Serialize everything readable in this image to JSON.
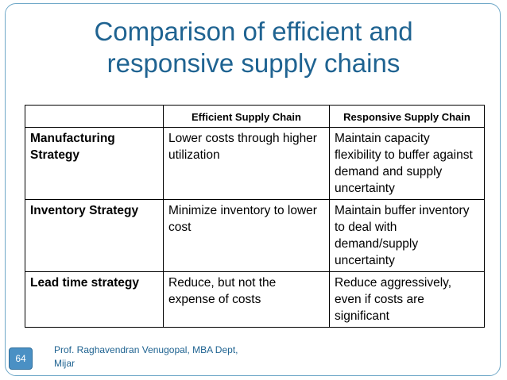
{
  "slide": {
    "title_line1": "Comparison of efficient and",
    "title_line2": "responsive supply chains",
    "footer_line1": "Prof. Raghavendran Venugopal, MBA Dept,",
    "footer_line2": "Mijar",
    "slide_number": "64"
  },
  "table": {
    "headers": [
      "",
      "Efficient Supply Chain",
      "Responsive Supply Chain"
    ],
    "rows": [
      {
        "label": "Manufacturing Strategy",
        "efficient": "Lower costs through higher utilization",
        "responsive": "Maintain capacity flexibility to buffer against demand and supply uncertainty"
      },
      {
        "label": "Inventory Strategy",
        "efficient": "Minimize inventory to lower cost",
        "responsive": "Maintain buffer inventory to deal with demand/supply uncertainty"
      },
      {
        "label": "Lead time strategy",
        "efficient": "Reduce, but not the expense of costs",
        "responsive": "Reduce aggressively, even if costs are significant"
      }
    ]
  },
  "colors": {
    "title": "#1f6391",
    "frame": "#6fa8c8",
    "badge": "#4a90c4"
  }
}
